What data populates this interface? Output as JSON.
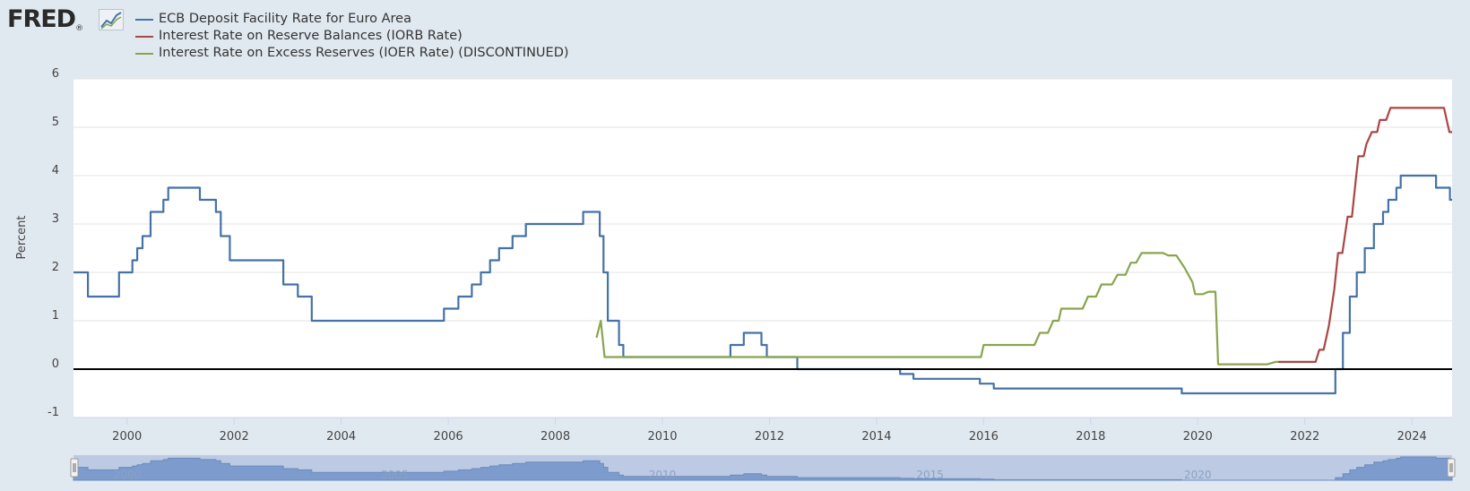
{
  "header": {
    "logo_text": "FRED",
    "logo_mark": "®",
    "logo_icon": "line-chart-icon"
  },
  "chart_data": {
    "type": "line",
    "title": "",
    "xlabel": "",
    "ylabel": "Percent",
    "xlim": [
      1999.0,
      2024.75
    ],
    "ylim": [
      -1,
      6
    ],
    "yticks": [
      "-1",
      "0",
      "1",
      "2",
      "3",
      "4",
      "5",
      "6"
    ],
    "xticks": [
      "2000",
      "2002",
      "2004",
      "2006",
      "2008",
      "2010",
      "2012",
      "2014",
      "2016",
      "2018",
      "2020",
      "2022",
      "2024"
    ],
    "grid": true,
    "legend_placement": "top-left",
    "zero_line": true,
    "navigator_labels": [
      "2000",
      "2005",
      "2010",
      "2015",
      "2020"
    ],
    "series": [
      {
        "name": "ECB Deposit Facility Rate for Euro Area",
        "color": "#4572a7",
        "step": true,
        "points": [
          [
            1999.0,
            2.0
          ],
          [
            1999.27,
            1.5
          ],
          [
            1999.85,
            2.0
          ],
          [
            2000.1,
            2.25
          ],
          [
            2000.19,
            2.5
          ],
          [
            2000.29,
            2.75
          ],
          [
            2000.44,
            3.25
          ],
          [
            2000.68,
            3.5
          ],
          [
            2000.77,
            3.75
          ],
          [
            2001.36,
            3.5
          ],
          [
            2001.66,
            3.25
          ],
          [
            2001.75,
            2.75
          ],
          [
            2001.92,
            2.25
          ],
          [
            2002.92,
            1.75
          ],
          [
            2003.19,
            1.5
          ],
          [
            2003.45,
            1.0
          ],
          [
            2005.92,
            1.25
          ],
          [
            2006.19,
            1.5
          ],
          [
            2006.44,
            1.75
          ],
          [
            2006.61,
            2.0
          ],
          [
            2006.78,
            2.25
          ],
          [
            2006.95,
            2.5
          ],
          [
            2007.2,
            2.75
          ],
          [
            2007.45,
            3.0
          ],
          [
            2008.52,
            3.25
          ],
          [
            2008.83,
            2.75
          ],
          [
            2008.9,
            2.0
          ],
          [
            2008.98,
            1.0
          ],
          [
            2009.19,
            0.5
          ],
          [
            2009.27,
            0.25
          ],
          [
            2011.27,
            0.5
          ],
          [
            2011.52,
            0.75
          ],
          [
            2011.85,
            0.5
          ],
          [
            2011.95,
            0.25
          ],
          [
            2012.52,
            0.0
          ],
          [
            2014.44,
            -0.1
          ],
          [
            2014.69,
            -0.2
          ],
          [
            2015.93,
            -0.3
          ],
          [
            2016.19,
            -0.4
          ],
          [
            2019.7,
            -0.5
          ],
          [
            2022.57,
            0.0
          ],
          [
            2022.71,
            0.75
          ],
          [
            2022.84,
            1.5
          ],
          [
            2022.97,
            2.0
          ],
          [
            2023.12,
            2.5
          ],
          [
            2023.29,
            3.0
          ],
          [
            2023.46,
            3.25
          ],
          [
            2023.56,
            3.5
          ],
          [
            2023.71,
            3.75
          ],
          [
            2023.79,
            4.0
          ],
          [
            2024.45,
            3.75
          ],
          [
            2024.71,
            3.5
          ],
          [
            2024.75,
            3.5
          ]
        ]
      },
      {
        "name": "Interest Rate on Reserve Balances (IORB Rate)",
        "color": "#aa4643",
        "step": false,
        "points": [
          [
            2021.5,
            0.15
          ],
          [
            2022.2,
            0.15
          ],
          [
            2022.27,
            0.4
          ],
          [
            2022.35,
            0.4
          ],
          [
            2022.45,
            0.9
          ],
          [
            2022.55,
            1.65
          ],
          [
            2022.62,
            2.4
          ],
          [
            2022.7,
            2.4
          ],
          [
            2022.8,
            3.15
          ],
          [
            2022.88,
            3.15
          ],
          [
            2022.95,
            3.9
          ],
          [
            2023.0,
            4.4
          ],
          [
            2023.1,
            4.4
          ],
          [
            2023.15,
            4.65
          ],
          [
            2023.25,
            4.9
          ],
          [
            2023.35,
            4.9
          ],
          [
            2023.4,
            5.15
          ],
          [
            2023.52,
            5.15
          ],
          [
            2023.6,
            5.4
          ],
          [
            2024.6,
            5.4
          ],
          [
            2024.7,
            4.9
          ],
          [
            2024.75,
            4.9
          ]
        ]
      },
      {
        "name": "Interest Rate on Excess Reserves (IOER Rate) (DISCONTINUED)",
        "color": "#89a54e",
        "step": false,
        "points": [
          [
            2008.77,
            0.65
          ],
          [
            2008.85,
            1.0
          ],
          [
            2008.92,
            0.25
          ],
          [
            2015.95,
            0.25
          ],
          [
            2016.0,
            0.5
          ],
          [
            2016.95,
            0.5
          ],
          [
            2017.05,
            0.75
          ],
          [
            2017.2,
            0.75
          ],
          [
            2017.3,
            1.0
          ],
          [
            2017.4,
            1.0
          ],
          [
            2017.45,
            1.25
          ],
          [
            2017.85,
            1.25
          ],
          [
            2017.95,
            1.5
          ],
          [
            2018.1,
            1.5
          ],
          [
            2018.2,
            1.75
          ],
          [
            2018.4,
            1.75
          ],
          [
            2018.5,
            1.95
          ],
          [
            2018.65,
            1.95
          ],
          [
            2018.75,
            2.2
          ],
          [
            2018.85,
            2.2
          ],
          [
            2018.95,
            2.4
          ],
          [
            2019.35,
            2.4
          ],
          [
            2019.45,
            2.35
          ],
          [
            2019.6,
            2.35
          ],
          [
            2019.75,
            2.1
          ],
          [
            2019.9,
            1.8
          ],
          [
            2019.95,
            1.55
          ],
          [
            2020.1,
            1.55
          ],
          [
            2020.2,
            1.6
          ],
          [
            2020.33,
            1.6
          ],
          [
            2020.38,
            0.1
          ],
          [
            2021.3,
            0.1
          ],
          [
            2021.45,
            0.15
          ],
          [
            2021.5,
            0.15
          ]
        ]
      }
    ]
  }
}
